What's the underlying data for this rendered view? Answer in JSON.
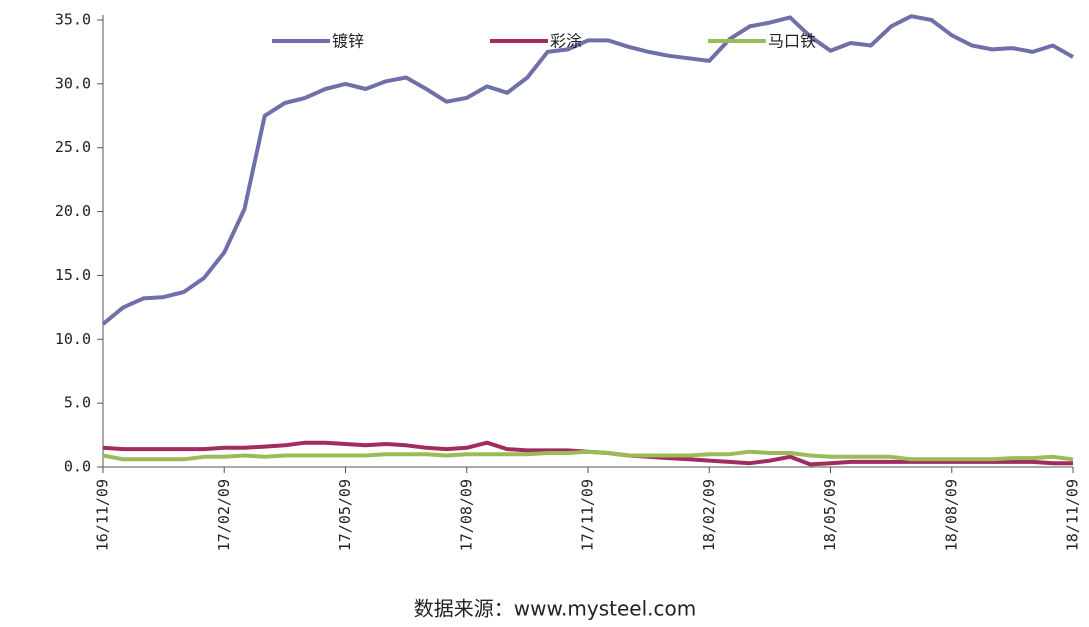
{
  "chart_data": {
    "type": "line",
    "categories": [
      "16/11/09",
      null,
      null,
      null,
      null,
      null,
      "17/02/09",
      null,
      null,
      null,
      null,
      null,
      "17/05/09",
      null,
      null,
      null,
      null,
      null,
      "17/08/09",
      null,
      null,
      null,
      null,
      null,
      "17/11/09",
      null,
      null,
      null,
      null,
      null,
      "18/02/09",
      null,
      null,
      null,
      null,
      null,
      "18/05/09",
      null,
      null,
      null,
      null,
      null,
      "18/08/09",
      null,
      null,
      null,
      null,
      null,
      "18/11/09"
    ],
    "series": [
      {
        "name": "镀锌",
        "color": "#6f70a9",
        "values": [
          11.2,
          12.5,
          13.2,
          13.3,
          13.7,
          14.8,
          16.8,
          20.2,
          27.5,
          28.5,
          28.9,
          29.6,
          30.0,
          29.6,
          30.2,
          30.5,
          29.6,
          28.6,
          28.9,
          29.8,
          29.3,
          30.5,
          32.5,
          32.7,
          33.4,
          33.4,
          32.9,
          32.5,
          32.2,
          32.0,
          31.8,
          33.5,
          34.5,
          34.8,
          35.2,
          33.7,
          32.6,
          33.2,
          33.0,
          34.5,
          35.3,
          35.0,
          33.8,
          33.0,
          32.7,
          32.8,
          32.5,
          33.0,
          32.1
        ]
      },
      {
        "name": "彩涂",
        "color": "#a02d5e",
        "values": [
          1.5,
          1.4,
          1.4,
          1.4,
          1.4,
          1.4,
          1.5,
          1.5,
          1.6,
          1.7,
          1.9,
          1.9,
          1.8,
          1.7,
          1.8,
          1.7,
          1.5,
          1.4,
          1.5,
          1.9,
          1.4,
          1.3,
          1.3,
          1.3,
          1.2,
          1.1,
          0.9,
          0.8,
          0.7,
          0.6,
          0.5,
          0.4,
          0.3,
          0.5,
          0.8,
          0.2,
          0.3,
          0.4,
          0.4,
          0.4,
          0.4,
          0.4,
          0.4,
          0.4,
          0.4,
          0.4,
          0.4,
          0.3,
          0.3
        ]
      },
      {
        "name": "马口铁",
        "color": "#9bbb59",
        "values": [
          0.9,
          0.6,
          0.6,
          0.6,
          0.6,
          0.8,
          0.8,
          0.9,
          0.8,
          0.9,
          0.9,
          0.9,
          0.9,
          0.9,
          1.0,
          1.0,
          1.0,
          0.9,
          1.0,
          1.0,
          1.0,
          1.0,
          1.1,
          1.1,
          1.2,
          1.1,
          0.9,
          0.9,
          0.9,
          0.9,
          1.0,
          1.0,
          1.2,
          1.1,
          1.1,
          0.9,
          0.8,
          0.8,
          0.8,
          0.8,
          0.6,
          0.6,
          0.6,
          0.6,
          0.6,
          0.7,
          0.7,
          0.8,
          0.6
        ]
      }
    ],
    "ylim": [
      0,
      35
    ],
    "yticks": [
      {
        "value": 0,
        "label": "0.0"
      },
      {
        "value": 5,
        "label": "5.0"
      },
      {
        "value": 10,
        "label": "10.0"
      },
      {
        "value": 15,
        "label": "15.0"
      },
      {
        "value": 20,
        "label": "20.0"
      },
      {
        "value": 25,
        "label": "25.0"
      },
      {
        "value": 30,
        "label": "30.0"
      },
      {
        "value": 35,
        "label": "35.0"
      }
    ],
    "source": "数据来源：www.mysteel.com"
  }
}
